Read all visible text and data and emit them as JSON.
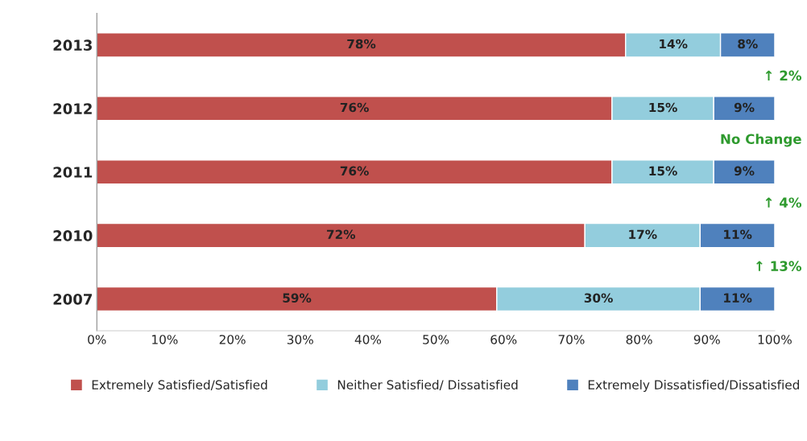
{
  "chart_data": {
    "type": "bar",
    "orientation": "horizontal",
    "stacked": true,
    "categories": [
      "2013",
      "2012",
      "2011",
      "2010",
      "2007"
    ],
    "series": [
      {
        "name": "Extremely Satisfied/Satisfied",
        "color": "#c0504d",
        "values": [
          78,
          76,
          76,
          72,
          59
        ],
        "value_labels": [
          "78%",
          "76%",
          "76%",
          "72%",
          "59%"
        ]
      },
      {
        "name": "Neither Satisfied/ Dissatisfied",
        "color": "#93cddd",
        "values": [
          14,
          15,
          15,
          17,
          30
        ],
        "value_labels": [
          "14%",
          "15%",
          "15%",
          "17%",
          "30%"
        ]
      },
      {
        "name": "Extremely Dissatisfied/Dissatisfied",
        "color": "#4f81bd",
        "values": [
          8,
          9,
          9,
          11,
          11
        ],
        "value_labels": [
          "8%",
          "9%",
          "9%",
          "11%",
          "11%"
        ]
      }
    ],
    "xlim": [
      0,
      100
    ],
    "xticks": [
      {
        "value": 0,
        "label": "0%"
      },
      {
        "value": 10,
        "label": "10%"
      },
      {
        "value": 20,
        "label": "20%"
      },
      {
        "value": 30,
        "label": "30%"
      },
      {
        "value": 40,
        "label": "40%"
      },
      {
        "value": 50,
        "label": "50%"
      },
      {
        "value": 60,
        "label": "60%"
      },
      {
        "value": 70,
        "label": "70%"
      },
      {
        "value": 80,
        "label": "80%"
      },
      {
        "value": 90,
        "label": "90%"
      },
      {
        "value": 100,
        "label": "100%"
      }
    ],
    "annotations": [
      "↑ 2%",
      "No Change",
      "↑ 4%",
      "↑ 13%"
    ],
    "grid": false,
    "legend": "bottom"
  }
}
